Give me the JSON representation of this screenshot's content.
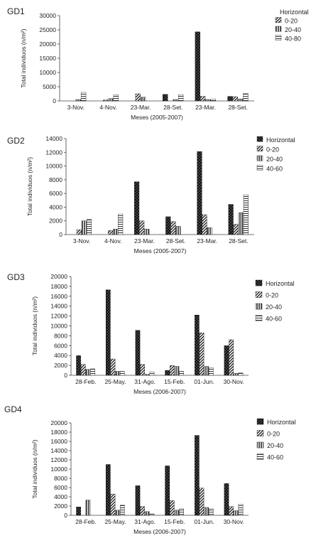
{
  "chart_data": [
    {
      "type": "bar",
      "panel_label": "GD1",
      "xlabel": "Meses (2005-2007)",
      "ylabel": "Total individuos (n/m²)",
      "ylim": [
        0,
        30000
      ],
      "yticks": [
        0,
        5000,
        10000,
        15000,
        20000,
        25000,
        30000
      ],
      "legend_position": "top-right",
      "legend_title": "Horizontal",
      "categories": [
        "3-Nov.",
        "4-Nov.",
        "23-Mar.",
        "28-Set.",
        "23-Mar.",
        "28-Set."
      ],
      "series": [
        {
          "name": "",
          "pattern": "dots",
          "values": [
            0,
            0,
            0,
            2300,
            24300,
            1600
          ]
        },
        {
          "name": "0-20",
          "pattern": "diag",
          "values": [
            0,
            300,
            2500,
            0,
            1600,
            1500
          ]
        },
        {
          "name": "20-40",
          "pattern": "vert",
          "values": [
            500,
            800,
            1300,
            500,
            500,
            700
          ]
        },
        {
          "name": "40-80",
          "pattern": "horiz",
          "values": [
            3000,
            2100,
            0,
            2200,
            600,
            2600
          ]
        }
      ]
    },
    {
      "type": "bar",
      "panel_label": "GD2",
      "xlabel": "Meses (2005-2007)",
      "ylabel": "Total individuos (n/m²)",
      "ylim": [
        0,
        14000
      ],
      "yticks": [
        0,
        2000,
        4000,
        6000,
        8000,
        10000,
        12000,
        14000
      ],
      "legend_position": "top-right",
      "categories": [
        "3-Nov.",
        "4-Nov.",
        "23-Mar.",
        "28-Set.",
        "23-Mar.",
        "28-Set."
      ],
      "series": [
        {
          "name": "Horizontal",
          "pattern": "dots",
          "values": [
            0,
            0,
            7700,
            2600,
            12100,
            4400
          ]
        },
        {
          "name": "0-20",
          "pattern": "diag",
          "values": [
            700,
            600,
            2000,
            1900,
            2900,
            1500
          ]
        },
        {
          "name": "20-40",
          "pattern": "vert",
          "values": [
            2000,
            800,
            800,
            1200,
            1000,
            3200
          ]
        },
        {
          "name": "40-60",
          "pattern": "horiz",
          "values": [
            2200,
            3000,
            0,
            0,
            0,
            5800
          ]
        }
      ]
    },
    {
      "type": "bar",
      "panel_label": "GD3",
      "xlabel": "Meses (2006-2007)",
      "ylabel": "Total individuos (n/m²)",
      "ylim": [
        0,
        20000
      ],
      "yticks": [
        0,
        2000,
        4000,
        6000,
        8000,
        10000,
        12000,
        14000,
        16000,
        18000,
        20000
      ],
      "legend_position": "top-right",
      "categories": [
        "28-Feb.",
        "25-May.",
        "31-Ago.",
        "15-Feb.",
        "01-Jun.",
        "30-Nov."
      ],
      "series": [
        {
          "name": "Horizontal",
          "pattern": "dots",
          "values": [
            4000,
            17300,
            9100,
            1000,
            12200,
            6000
          ]
        },
        {
          "name": "0-20",
          "pattern": "diag",
          "values": [
            2200,
            3300,
            2200,
            2000,
            8600,
            7200
          ]
        },
        {
          "name": "20-40",
          "pattern": "vert",
          "values": [
            1200,
            800,
            200,
            1800,
            1800,
            400
          ]
        },
        {
          "name": "40-60",
          "pattern": "horiz",
          "values": [
            1300,
            800,
            700,
            800,
            1500,
            500
          ]
        }
      ]
    },
    {
      "type": "bar",
      "panel_label": "GD4",
      "xlabel": "Meses (2006-2007)",
      "ylabel": "Total individuos (n/m²)",
      "ylim": [
        0,
        20000
      ],
      "yticks": [
        0,
        2000,
        4000,
        6000,
        8000,
        10000,
        12000,
        14000,
        16000,
        18000,
        20000
      ],
      "legend_position": "top-right",
      "categories": [
        "28-Feb.",
        "25-May.",
        "31-Ago.",
        "15-Feb.",
        "01-Jun.",
        "30-Nov."
      ],
      "series": [
        {
          "name": "Horizontal",
          "pattern": "dots",
          "values": [
            1800,
            11000,
            6400,
            10700,
            17300,
            6900
          ]
        },
        {
          "name": "0-20",
          "pattern": "diag",
          "values": [
            0,
            4600,
            1900,
            3200,
            5900,
            1900
          ]
        },
        {
          "name": "20-40",
          "pattern": "vert",
          "values": [
            3300,
            1100,
            800,
            1100,
            1700,
            1000
          ]
        },
        {
          "name": "40-60",
          "pattern": "horiz",
          "values": [
            0,
            2200,
            300,
            1400,
            1400,
            2400
          ]
        }
      ]
    }
  ]
}
